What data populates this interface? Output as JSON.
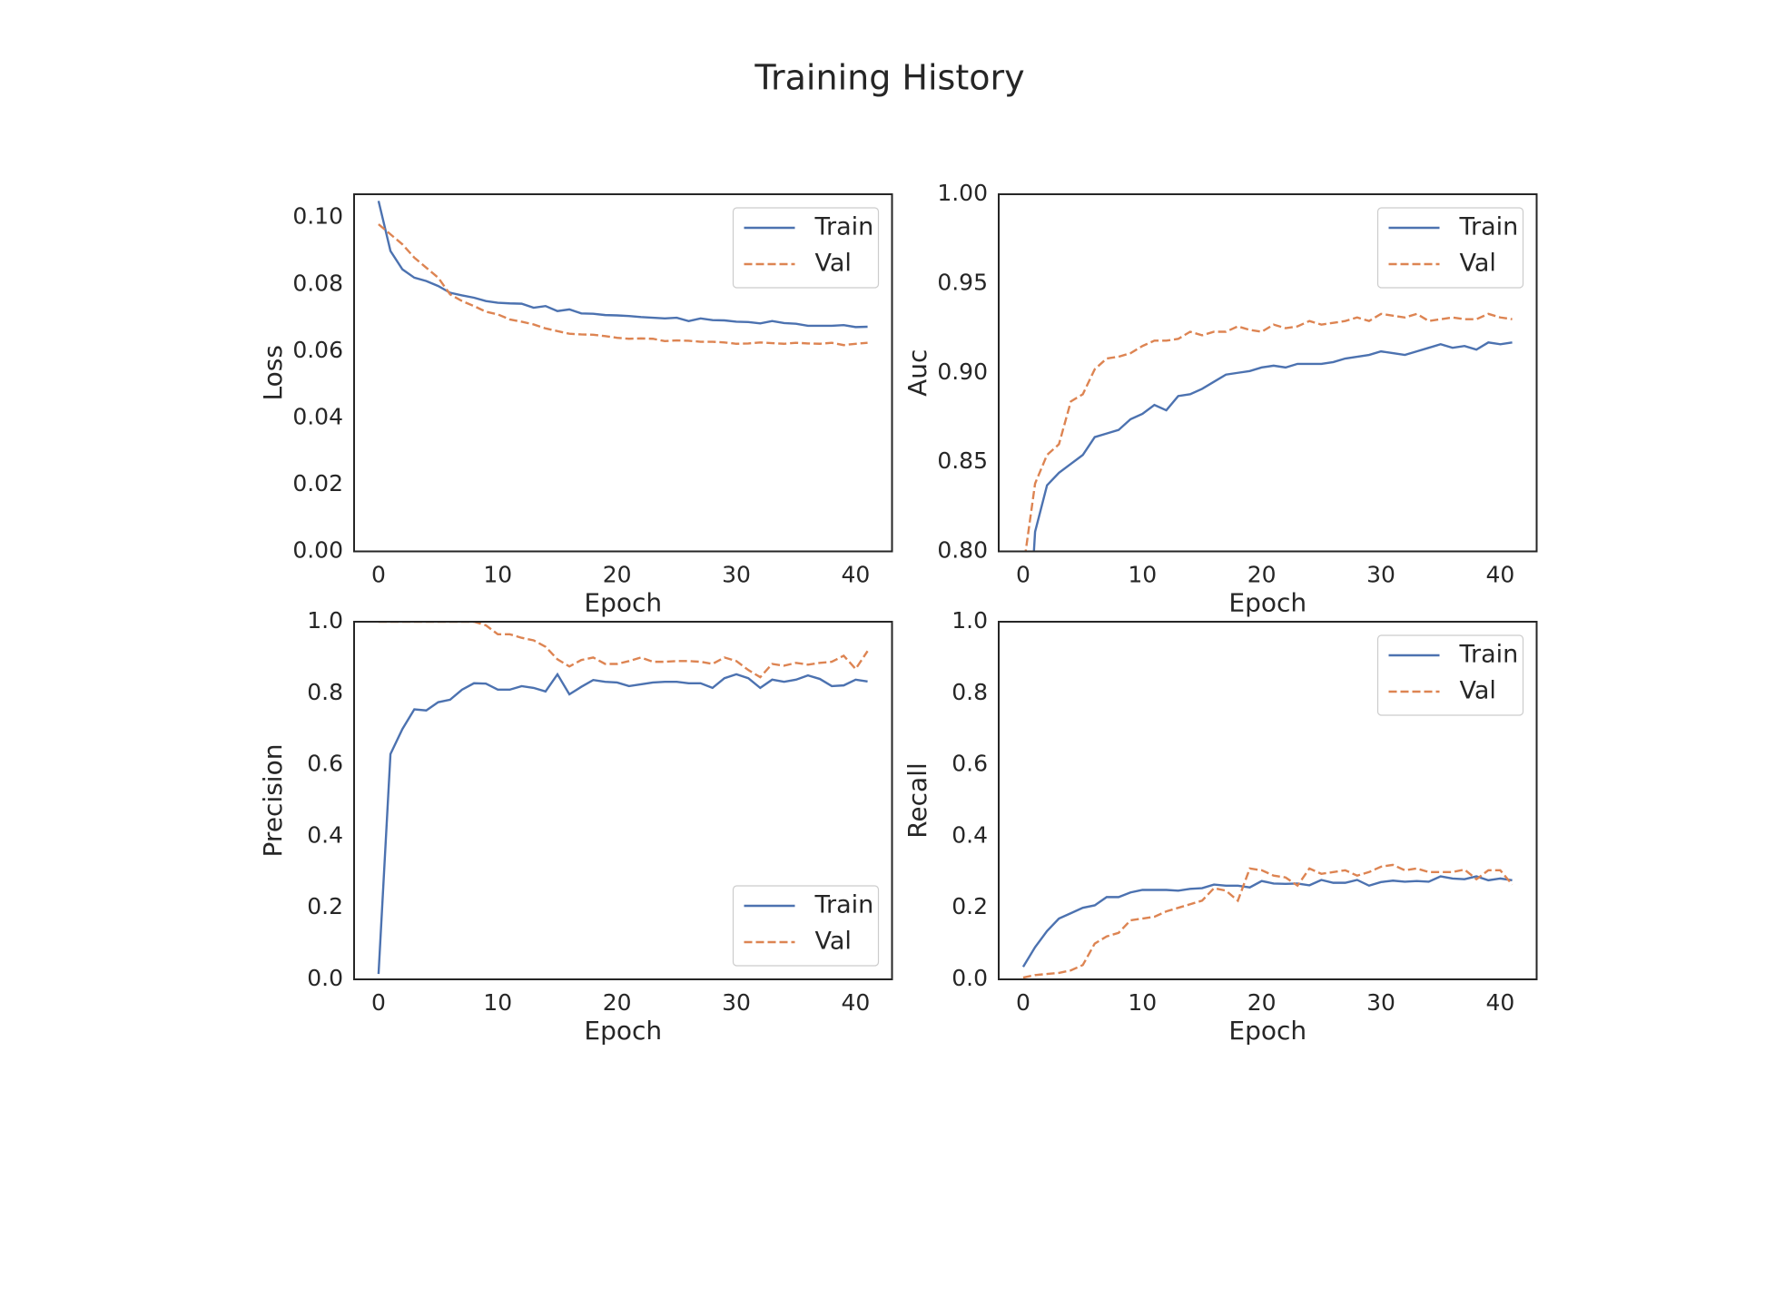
{
  "title": "Training History",
  "chart_data": [
    {
      "type": "line",
      "xlabel": "Epoch",
      "ylabel": "Loss",
      "x": [
        0,
        1,
        2,
        3,
        4,
        5,
        6,
        7,
        8,
        9,
        10,
        11,
        12,
        13,
        14,
        15,
        16,
        17,
        18,
        19,
        20,
        21,
        22,
        23,
        24,
        25,
        26,
        27,
        28,
        29,
        30,
        31,
        32,
        33,
        34,
        35,
        36,
        37,
        38,
        39,
        40,
        41
      ],
      "xlim": [
        -2.05,
        43.05
      ],
      "xticks": [
        0,
        10,
        20,
        30,
        40
      ],
      "ylim": [
        0,
        0.107
      ],
      "yticks": [
        {
          "value": 0,
          "label": "0.00"
        },
        0.02,
        0.04,
        0.06,
        0.08,
        {
          "value": 0.1,
          "label": "0.10"
        }
      ],
      "grid": false,
      "legend": "upper right",
      "series": [
        {
          "name": "Train",
          "color": "#4c72b0",
          "linestyle": "solid",
          "values": [
            0.105,
            0.09,
            0.0845,
            0.082,
            0.081,
            0.0795,
            0.0775,
            0.0767,
            0.076,
            0.075,
            0.0745,
            0.0743,
            0.0742,
            0.073,
            0.0735,
            0.072,
            0.0725,
            0.0713,
            0.0712,
            0.0708,
            0.0707,
            0.0705,
            0.0702,
            0.07,
            0.0698,
            0.07,
            0.069,
            0.0698,
            0.0693,
            0.0692,
            0.0688,
            0.0687,
            0.0683,
            0.069,
            0.0684,
            0.0682,
            0.0676,
            0.0676,
            0.0676,
            0.0678,
            0.0672,
            0.0673
          ]
        },
        {
          "name": "Val",
          "color": "#dd8452",
          "linestyle": "dashed",
          "values": [
            0.098,
            0.095,
            0.092,
            0.088,
            0.085,
            0.082,
            0.077,
            0.075,
            0.0735,
            0.0718,
            0.071,
            0.0695,
            0.0688,
            0.068,
            0.0668,
            0.066,
            0.0652,
            0.065,
            0.0649,
            0.0645,
            0.064,
            0.0637,
            0.0638,
            0.0637,
            0.063,
            0.0632,
            0.0631,
            0.0628,
            0.0628,
            0.0626,
            0.0622,
            0.0623,
            0.0626,
            0.0624,
            0.0622,
            0.0625,
            0.0623,
            0.0622,
            0.0625,
            0.0618,
            0.0622,
            0.0625
          ]
        }
      ]
    },
    {
      "type": "line",
      "xlabel": "Epoch",
      "ylabel": "Auc",
      "x": [
        0,
        1,
        2,
        3,
        4,
        5,
        6,
        7,
        8,
        9,
        10,
        11,
        12,
        13,
        14,
        15,
        16,
        17,
        18,
        19,
        20,
        21,
        22,
        23,
        24,
        25,
        26,
        27,
        28,
        29,
        30,
        31,
        32,
        33,
        34,
        35,
        36,
        37,
        38,
        39,
        40,
        41
      ],
      "xlim": [
        -2.05,
        43.05
      ],
      "xticks": [
        0,
        10,
        20,
        30,
        40
      ],
      "ylim": [
        0.8,
        1.0
      ],
      "yticks": [
        {
          "value": 0.8,
          "label": "0.80"
        },
        0.85,
        {
          "value": 0.9,
          "label": "0.90"
        },
        0.95,
        {
          "value": 1.0,
          "label": "1.00"
        }
      ],
      "grid": false,
      "legend": "upper right",
      "series": [
        {
          "name": "Train",
          "color": "#4c72b0",
          "linestyle": "solid",
          "values": [
            0.7,
            0.811,
            0.837,
            0.844,
            0.849,
            0.854,
            0.864,
            0.866,
            0.868,
            0.874,
            0.877,
            0.882,
            0.879,
            0.887,
            0.888,
            0.891,
            0.895,
            0.899,
            0.9,
            0.901,
            0.903,
            0.904,
            0.903,
            0.905,
            0.905,
            0.905,
            0.906,
            0.908,
            0.909,
            0.91,
            0.912,
            0.911,
            0.91,
            0.912,
            0.914,
            0.916,
            0.914,
            0.915,
            0.913,
            0.917,
            0.916,
            0.917
          ]
        },
        {
          "name": "Val",
          "color": "#dd8452",
          "linestyle": "dashed",
          "values": [
            0.79,
            0.838,
            0.854,
            0.86,
            0.884,
            0.888,
            0.902,
            0.908,
            0.909,
            0.911,
            0.915,
            0.918,
            0.918,
            0.919,
            0.923,
            0.921,
            0.923,
            0.923,
            0.926,
            0.924,
            0.923,
            0.927,
            0.925,
            0.926,
            0.929,
            0.927,
            0.928,
            0.929,
            0.931,
            0.929,
            0.933,
            0.932,
            0.931,
            0.933,
            0.929,
            0.93,
            0.931,
            0.93,
            0.93,
            0.933,
            0.931,
            0.93
          ]
        }
      ]
    },
    {
      "type": "line",
      "xlabel": "Epoch",
      "ylabel": "Precision",
      "x": [
        0,
        1,
        2,
        3,
        4,
        5,
        6,
        7,
        8,
        9,
        10,
        11,
        12,
        13,
        14,
        15,
        16,
        17,
        18,
        19,
        20,
        21,
        22,
        23,
        24,
        25,
        26,
        27,
        28,
        29,
        30,
        31,
        32,
        33,
        34,
        35,
        36,
        37,
        38,
        39,
        40,
        41
      ],
      "xlim": [
        -2.05,
        43.05
      ],
      "xticks": [
        0,
        10,
        20,
        30,
        40
      ],
      "ylim": [
        0,
        1.0
      ],
      "yticks": [
        {
          "value": 0,
          "label": "0.0"
        },
        0.2,
        0.4,
        0.6,
        0.8,
        {
          "value": 1.0,
          "label": "1.0"
        }
      ],
      "grid": false,
      "legend": "lower right",
      "series": [
        {
          "name": "Train",
          "color": "#4c72b0",
          "linestyle": "solid",
          "values": [
            0.015,
            0.63,
            0.7,
            0.755,
            0.752,
            0.775,
            0.782,
            0.81,
            0.828,
            0.827,
            0.81,
            0.81,
            0.82,
            0.815,
            0.805,
            0.853,
            0.797,
            0.818,
            0.837,
            0.832,
            0.83,
            0.82,
            0.825,
            0.83,
            0.832,
            0.832,
            0.828,
            0.828,
            0.815,
            0.842,
            0.853,
            0.842,
            0.815,
            0.838,
            0.832,
            0.838,
            0.85,
            0.84,
            0.82,
            0.822,
            0.838,
            0.833
          ]
        },
        {
          "name": "Val",
          "color": "#dd8452",
          "linestyle": "dashed",
          "values": [
            1.0,
            1.0,
            1.0,
            1.0,
            1.0,
            1.0,
            1.0,
            1.0,
            1.0,
            0.99,
            0.965,
            0.965,
            0.955,
            0.948,
            0.93,
            0.895,
            0.875,
            0.893,
            0.9,
            0.882,
            0.882,
            0.89,
            0.9,
            0.888,
            0.888,
            0.89,
            0.89,
            0.888,
            0.882,
            0.9,
            0.89,
            0.865,
            0.845,
            0.882,
            0.877,
            0.885,
            0.88,
            0.885,
            0.888,
            0.905,
            0.868,
            0.918
          ]
        }
      ]
    },
    {
      "type": "line",
      "xlabel": "Epoch",
      "ylabel": "Recall",
      "x": [
        0,
        1,
        2,
        3,
        4,
        5,
        6,
        7,
        8,
        9,
        10,
        11,
        12,
        13,
        14,
        15,
        16,
        17,
        18,
        19,
        20,
        21,
        22,
        23,
        24,
        25,
        26,
        27,
        28,
        29,
        30,
        31,
        32,
        33,
        34,
        35,
        36,
        37,
        38,
        39,
        40,
        41
      ],
      "xlim": [
        -2.05,
        43.05
      ],
      "xticks": [
        0,
        10,
        20,
        30,
        40
      ],
      "ylim": [
        0,
        1.0
      ],
      "yticks": [
        {
          "value": 0,
          "label": "0.0"
        },
        0.2,
        0.4,
        0.6,
        0.8,
        {
          "value": 1.0,
          "label": "1.0"
        }
      ],
      "grid": false,
      "legend": "upper right",
      "series": [
        {
          "name": "Train",
          "color": "#4c72b0",
          "linestyle": "solid",
          "values": [
            0.035,
            0.09,
            0.135,
            0.17,
            0.185,
            0.2,
            0.207,
            0.23,
            0.23,
            0.243,
            0.25,
            0.25,
            0.25,
            0.248,
            0.253,
            0.255,
            0.265,
            0.262,
            0.262,
            0.257,
            0.275,
            0.268,
            0.267,
            0.268,
            0.263,
            0.278,
            0.27,
            0.27,
            0.278,
            0.262,
            0.272,
            0.276,
            0.273,
            0.275,
            0.273,
            0.288,
            0.282,
            0.28,
            0.288,
            0.277,
            0.282,
            0.277
          ]
        },
        {
          "name": "Val",
          "color": "#dd8452",
          "linestyle": "dashed",
          "values": [
            0.005,
            0.012,
            0.015,
            0.018,
            0.025,
            0.04,
            0.1,
            0.12,
            0.13,
            0.165,
            0.17,
            0.175,
            0.19,
            0.2,
            0.21,
            0.22,
            0.255,
            0.248,
            0.22,
            0.31,
            0.305,
            0.29,
            0.285,
            0.262,
            0.31,
            0.295,
            0.3,
            0.305,
            0.29,
            0.3,
            0.315,
            0.32,
            0.305,
            0.31,
            0.3,
            0.3,
            0.3,
            0.307,
            0.28,
            0.305,
            0.305,
            0.265
          ]
        }
      ]
    }
  ]
}
